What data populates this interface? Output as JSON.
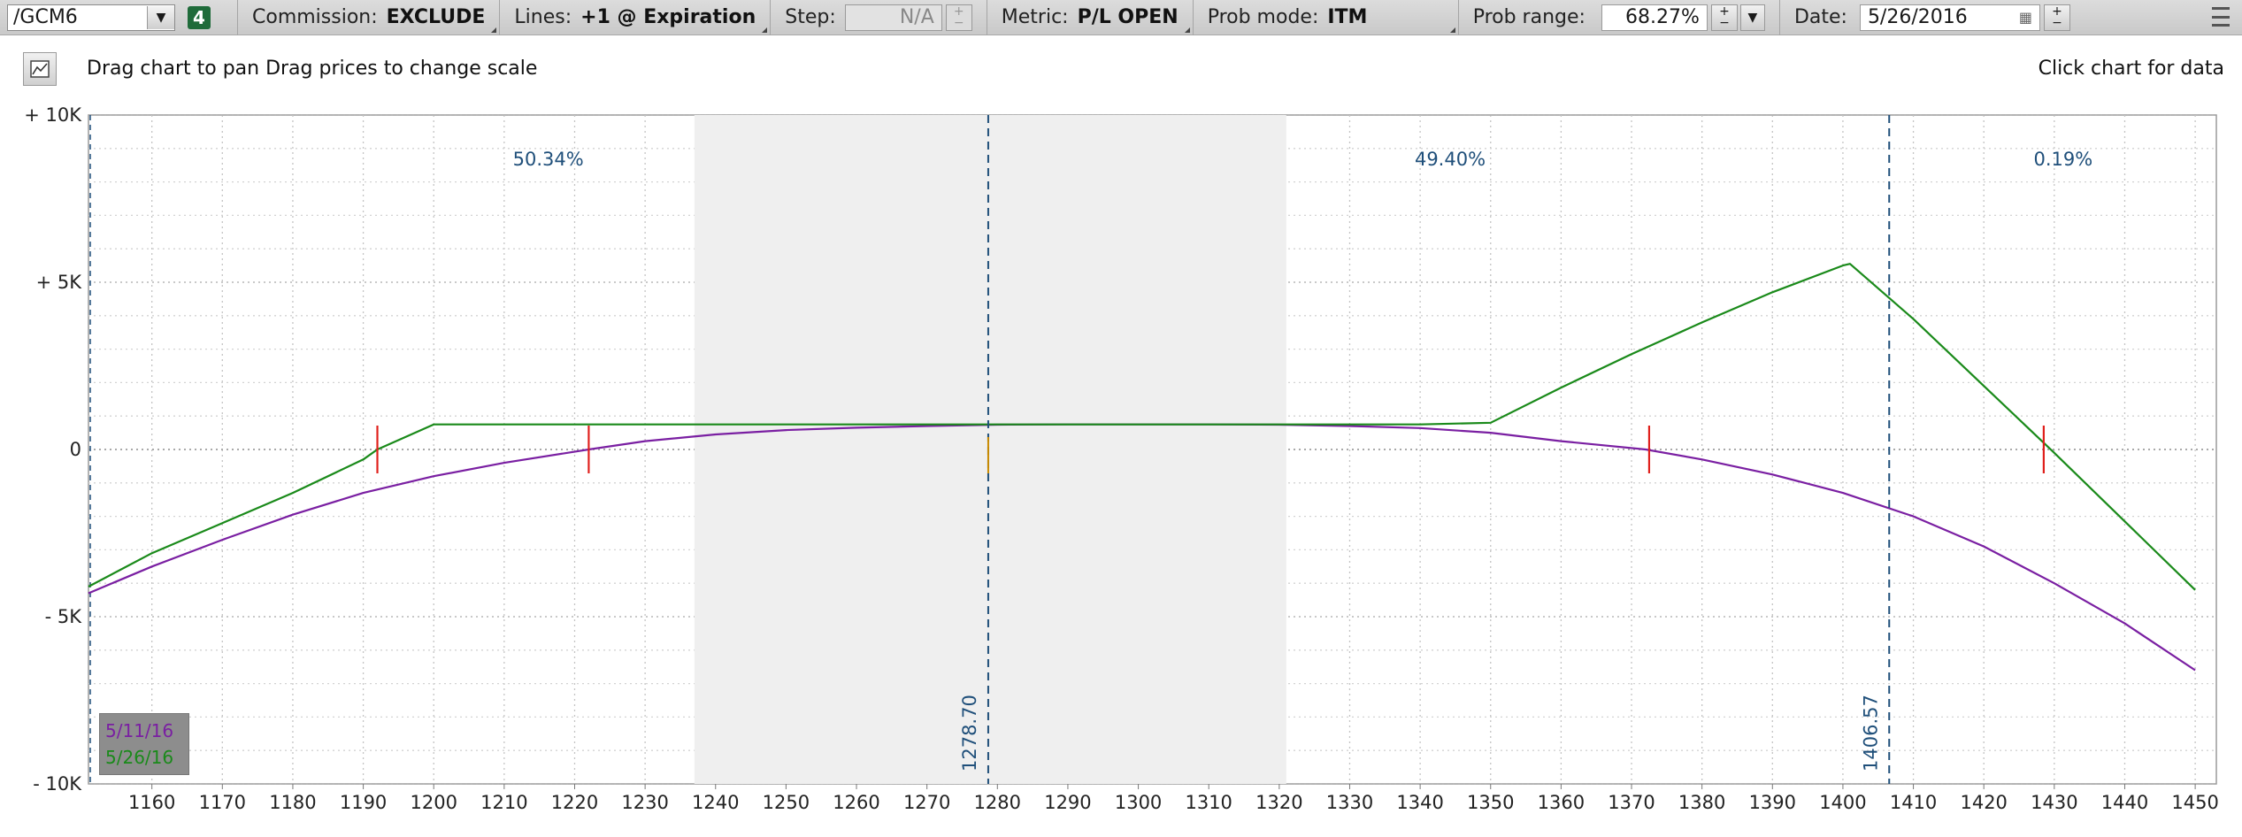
{
  "toolbar": {
    "symbol": "/GCM6",
    "badge": "4",
    "commission_label": "Commission:",
    "commission_value": "EXCLUDE",
    "lines_label": "Lines:",
    "lines_value": "+1 @ Expiration",
    "step_label": "Step:",
    "step_value": "N/A",
    "metric_label": "Metric:",
    "metric_value": "P/L OPEN",
    "prob_mode_label": "Prob mode:",
    "prob_mode_value": "ITM",
    "prob_range_label": "Prob range:",
    "prob_range_value": "68.27%",
    "date_label": "Date:",
    "date_value": "5/26/2016"
  },
  "hint": {
    "left": "Drag chart to pan Drag prices to change scale",
    "right": "Click chart for data"
  },
  "colors": {
    "series_current": "#7a1fa2",
    "series_expiration": "#1a8a1a",
    "breakeven": "#e0201c",
    "price_line": "#1f4f7a",
    "prob_band": "#efefef"
  },
  "chart_data": {
    "type": "line",
    "title": "",
    "xlabel": "",
    "ylabel": "",
    "xlim": [
      1151,
      1453
    ],
    "ylim": [
      -10000,
      10000
    ],
    "x_ticks": [
      1160,
      1170,
      1180,
      1190,
      1200,
      1210,
      1220,
      1230,
      1240,
      1250,
      1260,
      1270,
      1280,
      1290,
      1300,
      1310,
      1320,
      1330,
      1340,
      1350,
      1360,
      1370,
      1380,
      1390,
      1400,
      1410,
      1420,
      1430,
      1440,
      1450
    ],
    "y_ticks": [
      {
        "value": 10000,
        "label": "+ 10K"
      },
      {
        "value": 5000,
        "label": "+ 5K"
      },
      {
        "value": 0,
        "label": "0"
      },
      {
        "value": -5000,
        "label": "- 5K"
      },
      {
        "value": -10000,
        "label": "- 10K"
      }
    ],
    "grid": true,
    "series": [
      {
        "name": "5/11/16",
        "color": "#7a1fa2",
        "x": [
          1151,
          1160,
          1170,
          1180,
          1190,
          1200,
          1210,
          1222,
          1230,
          1240,
          1250,
          1260,
          1270,
          1280,
          1290,
          1300,
          1310,
          1320,
          1330,
          1340,
          1350,
          1360,
          1372,
          1380,
          1390,
          1400,
          1410,
          1420,
          1430,
          1440,
          1450
        ],
        "y": [
          -4300,
          -3500,
          -2700,
          -1950,
          -1300,
          -800,
          -400,
          0,
          250,
          450,
          580,
          650,
          700,
          740,
          750,
          750,
          750,
          740,
          700,
          640,
          500,
          250,
          0,
          -300,
          -750,
          -1300,
          -2000,
          -2900,
          -4000,
          -5200,
          -6600
        ]
      },
      {
        "name": "5/26/16",
        "color": "#1a8a1a",
        "x": [
          1151,
          1160,
          1170,
          1180,
          1190,
          1192,
          1200,
          1210,
          1220,
          1230,
          1240,
          1250,
          1260,
          1270,
          1280,
          1290,
          1300,
          1310,
          1320,
          1330,
          1340,
          1350,
          1360,
          1370,
          1380,
          1390,
          1400,
          1401,
          1410,
          1420,
          1430,
          1440,
          1450
        ],
        "y": [
          -4100,
          -3100,
          -2200,
          -1300,
          -300,
          0,
          750,
          750,
          750,
          750,
          750,
          750,
          750,
          750,
          750,
          750,
          750,
          750,
          750,
          750,
          750,
          800,
          1850,
          2850,
          3800,
          4700,
          5500,
          5550,
          3900,
          1900,
          -100,
          -2150,
          -4200
        ]
      }
    ],
    "breakevens": [
      1192,
      1222,
      1372.5,
      1428.5
    ],
    "probability_band": {
      "from": 1237,
      "to": 1321
    },
    "price_lines": [
      {
        "value": 1278.7,
        "label": "1278.70"
      },
      {
        "value": 1406.57,
        "label": "1406.57"
      }
    ],
    "probabilities": [
      {
        "x": 1215,
        "label": "50.34%"
      },
      {
        "x": 1343,
        "label": "49.40%"
      },
      {
        "x": 1430,
        "label": "0.19%"
      }
    ],
    "legend": {
      "position": "bottom-left",
      "entries": [
        "5/11/16",
        "5/26/16"
      ]
    }
  }
}
